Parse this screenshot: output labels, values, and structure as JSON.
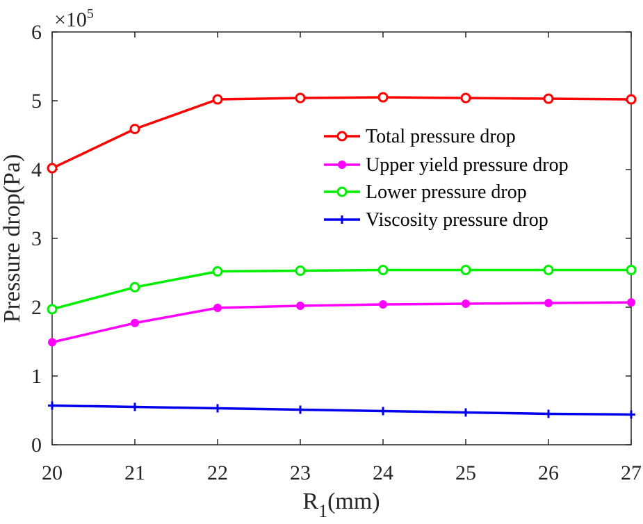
{
  "chart_data": {
    "type": "line",
    "x": [
      20,
      21,
      22,
      23,
      24,
      25,
      26,
      27
    ],
    "xlim": [
      20,
      27
    ],
    "ylim": [
      0,
      6
    ],
    "xticks": [
      "20",
      "21",
      "22",
      "23",
      "24",
      "25",
      "26",
      "27"
    ],
    "yticks": [
      "0",
      "1",
      "2",
      "3",
      "4",
      "5",
      "6"
    ],
    "xlabel_main": "R",
    "xlabel_sub": "1",
    "xlabel_unit": "(mm)",
    "ylabel": "Pressure drop(Pa)",
    "y_multiplier_prefix": "×10",
    "y_multiplier_exponent": "5",
    "legend_position": "upper-right-inside",
    "series": [
      {
        "name": "Total pressure drop",
        "color": "#ff0000",
        "marker": "open-circle",
        "values": [
          4.02,
          4.59,
          5.02,
          5.04,
          5.05,
          5.04,
          5.03,
          5.02
        ]
      },
      {
        "name": "Upper yield pressure drop",
        "color": "#ff00ff",
        "marker": "filled-circle",
        "values": [
          1.49,
          1.77,
          1.99,
          2.02,
          2.04,
          2.05,
          2.06,
          2.07
        ]
      },
      {
        "name": "Lower pressure drop",
        "color": "#00ee00",
        "marker": "open-circle",
        "values": [
          1.97,
          2.29,
          2.52,
          2.53,
          2.54,
          2.54,
          2.54,
          2.54
        ]
      },
      {
        "name": "Viscosity pressure drop",
        "color": "#0000ee",
        "marker": "plus",
        "values": [
          0.57,
          0.55,
          0.53,
          0.51,
          0.49,
          0.47,
          0.45,
          0.44
        ]
      }
    ]
  }
}
